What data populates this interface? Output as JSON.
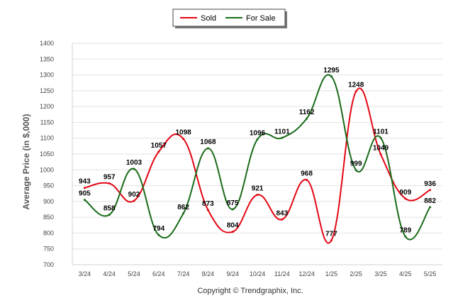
{
  "chart_data": {
    "type": "line",
    "categories": [
      "3/24",
      "4/24",
      "5/24",
      "6/24",
      "7/24",
      "8/24",
      "9/24",
      "10/24",
      "11/24",
      "12/24",
      "1/25",
      "2/25",
      "3/25",
      "4/25",
      "5/25"
    ],
    "series": [
      {
        "name": "Sold",
        "color": "#e30613",
        "values": [
          943,
          957,
          902,
          1057,
          1098,
          873,
          804,
          921,
          843,
          968,
          777,
          1248,
          1049,
          909,
          936
        ]
      },
      {
        "name": "For Sale",
        "color": "#1a6b1a",
        "values": [
          905,
          858,
          1003,
          794,
          862,
          1068,
          875,
          1096,
          1101,
          1162,
          1295,
          999,
          1101,
          789,
          882
        ]
      }
    ],
    "ylabel": "Average Price (in $,000)",
    "xlabel": "",
    "ylim": [
      700,
      1400
    ],
    "yticks": [
      700,
      750,
      800,
      850,
      900,
      950,
      1000,
      1050,
      1100,
      1150,
      1200,
      1250,
      1300,
      1350,
      1400
    ],
    "grid": true,
    "legend": "top-center",
    "credit": "Copyright © Trendgraphix, Inc."
  }
}
